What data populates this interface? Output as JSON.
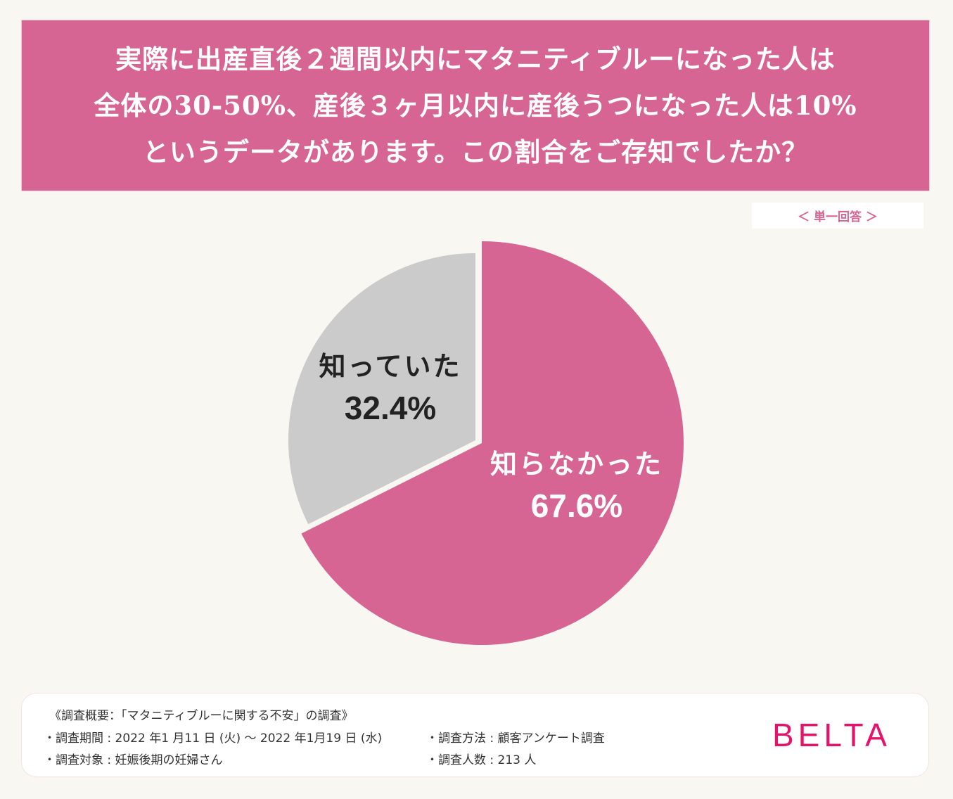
{
  "header": {
    "lines": [
      "実際に出産直後２週間以内にマタニティブルーになった人は",
      "全体の30-50%、産後３ヶ月以内に産後うつになった人は10%",
      "というデータがあります。この割合をご存知でしたか？"
    ]
  },
  "answer_type": "＜ 単一回答 ＞",
  "colors": {
    "accent": "#d76593",
    "gray": "#cbcbcb",
    "background": "#f8f7f2",
    "brand": "#e4146b"
  },
  "chart_data": {
    "type": "pie",
    "title": "実際に出産直後２週間以内にマタニティブルーになった人は全体の30-50%、産後３ヶ月以内に産後うつになった人は10%というデータがあります。この割合をご存知でしたか？",
    "categories": [
      "知らなかった",
      "知っていた"
    ],
    "values": [
      67.6,
      32.4
    ],
    "colors": [
      "#d76593",
      "#cbcbcb"
    ],
    "labels": [
      "知らなかった 67.6%",
      "知っていた 32.4%"
    ],
    "note": "＜ 単一回答 ＞",
    "legend": "none (labels inside slices)"
  },
  "slices": {
    "unknown": {
      "name": "知らなかった",
      "pct": "67.6%"
    },
    "known": {
      "name": "知っていた",
      "pct": "32.4%"
    }
  },
  "footer": {
    "summary": "《調査概要：「マタニティブルーに関する不安」の調査》",
    "period": "・調査期間 : 2022 年1 月11 日 (火) ～ 2022 年1月19 日 (水)",
    "target": "・調査対象 : 妊娠後期の妊婦さん",
    "method": "・調査方法 : 顧客アンケート調査",
    "count": "・調査人数 : 213 人",
    "logo": "BELTA"
  }
}
